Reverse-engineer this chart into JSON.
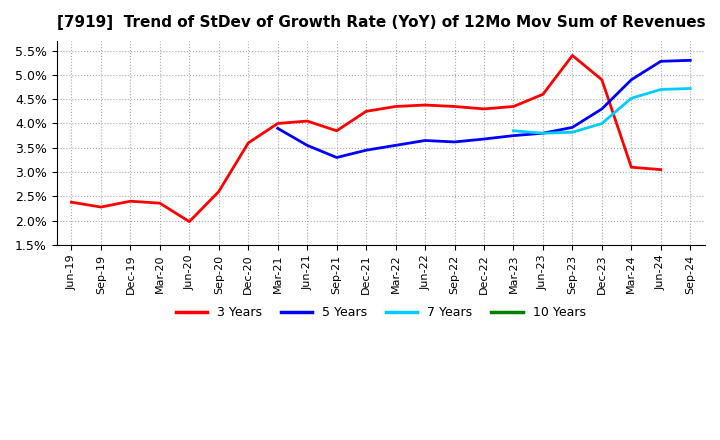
{
  "title": "[7919]  Trend of StDev of Growth Rate (YoY) of 12Mo Mov Sum of Revenues",
  "ylim": [
    0.015,
    0.057
  ],
  "yticks": [
    0.015,
    0.02,
    0.025,
    0.03,
    0.035,
    0.04,
    0.045,
    0.05,
    0.055
  ],
  "background_color": "#ffffff",
  "grid_color": "#aaaaaa",
  "series": {
    "3 Years": {
      "color": "#ff0000",
      "x_idx": [
        0,
        1,
        2,
        3,
        4,
        5,
        6,
        7,
        8,
        9,
        10,
        11,
        12,
        13,
        14,
        15,
        16,
        17,
        18,
        19,
        20
      ],
      "values": [
        0.0238,
        0.0228,
        0.024,
        0.0236,
        0.0198,
        0.026,
        0.036,
        0.04,
        0.0405,
        0.0385,
        0.0425,
        0.0435,
        0.0438,
        0.0435,
        0.043,
        0.0435,
        0.046,
        0.054,
        0.049,
        0.031,
        0.0305
      ]
    },
    "5 Years": {
      "color": "#0000ff",
      "x_idx": [
        7,
        8,
        9,
        10,
        11,
        12,
        13,
        14,
        15,
        16,
        17,
        18,
        19,
        20,
        21
      ],
      "values": [
        0.039,
        0.0355,
        0.033,
        0.0345,
        0.0355,
        0.0365,
        0.0362,
        0.0368,
        0.0375,
        0.038,
        0.0392,
        0.043,
        0.049,
        0.0528,
        0.053
      ]
    },
    "7 Years": {
      "color": "#00ccff",
      "x_idx": [
        15,
        16,
        17,
        18,
        19,
        20,
        21
      ],
      "values": [
        0.0385,
        0.038,
        0.0382,
        0.04,
        0.0452,
        0.047,
        0.0472
      ]
    },
    "10 Years": {
      "color": "#008000",
      "x_idx": [],
      "values": []
    }
  },
  "xtick_labels": [
    "Jun-19",
    "Sep-19",
    "Dec-19",
    "Mar-20",
    "Jun-20",
    "Sep-20",
    "Dec-20",
    "Mar-21",
    "Jun-21",
    "Sep-21",
    "Dec-21",
    "Mar-22",
    "Jun-22",
    "Sep-22",
    "Dec-22",
    "Mar-23",
    "Jun-23",
    "Sep-23",
    "Dec-23",
    "Mar-24",
    "Jun-24",
    "Sep-24"
  ],
  "legend_labels": [
    "3 Years",
    "5 Years",
    "7 Years",
    "10 Years"
  ],
  "legend_colors": [
    "#ff0000",
    "#0000ff",
    "#00ccff",
    "#008000"
  ]
}
